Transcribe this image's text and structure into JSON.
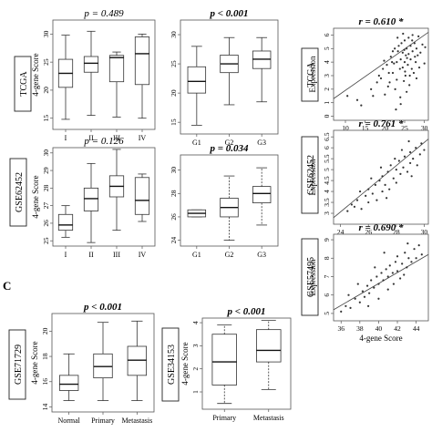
{
  "panel_c_label": "C",
  "chart_data": [
    {
      "id": "tcga-stage",
      "type": "boxplot",
      "group": "TCGA",
      "ylabel": "4-gene Score",
      "stat": "p = 0.489",
      "stat_bold": false,
      "categories": [
        "I",
        "II",
        "III",
        "IV"
      ],
      "ylim": [
        13,
        32.5
      ],
      "yticks": [
        15,
        20,
        25,
        30
      ],
      "boxes": [
        {
          "wl": 14.8,
          "q1": 20.5,
          "med": 23,
          "q3": 25.5,
          "wh": 29.8
        },
        {
          "wl": 15.5,
          "q1": 23.2,
          "med": 24.8,
          "q3": 26,
          "wh": 30.5
        },
        {
          "wl": 15.2,
          "q1": 21.5,
          "med": 25.8,
          "q3": 26.2,
          "wh": 26.8
        },
        {
          "wl": 15,
          "q1": 21,
          "med": 26.5,
          "q3": 29.5,
          "wh": 30
        }
      ]
    },
    {
      "id": "tcga-grade",
      "type": "boxplot",
      "group": "TCGA",
      "ylabel": "",
      "stat": "p < 0.001",
      "stat_bold": true,
      "categories": [
        "G1",
        "G2",
        "G3"
      ],
      "ylim": [
        13,
        32.5
      ],
      "yticks": [
        15,
        20,
        25,
        30
      ],
      "boxes": [
        {
          "wl": 14.5,
          "q1": 20,
          "med": 22,
          "q3": 24.5,
          "wh": 28
        },
        {
          "wl": 18,
          "q1": 23.5,
          "med": 25,
          "q3": 26.5,
          "wh": 29.5
        },
        {
          "wl": 18.5,
          "q1": 24.2,
          "med": 25.8,
          "q3": 27.2,
          "wh": 29.5
        }
      ]
    },
    {
      "id": "tcga-corr",
      "type": "scatter",
      "group": "TCGA",
      "ylabel": "Expression",
      "stat": "r = 0.610 *",
      "xlim": [
        7,
        31
      ],
      "ylim": [
        -0.3,
        6.5
      ],
      "xticks": [
        10,
        15,
        20,
        25,
        30
      ],
      "yticks": [
        0,
        1,
        2,
        3,
        4,
        5,
        6
      ],
      "fit": [
        [
          7,
          1.3
        ],
        [
          31,
          6.2
        ]
      ],
      "points": [
        [
          10.5,
          1.5
        ],
        [
          13,
          1.2
        ],
        [
          14,
          0.8
        ],
        [
          16.5,
          2
        ],
        [
          17,
          1.5
        ],
        [
          18,
          2.5
        ],
        [
          18.5,
          3
        ],
        [
          19,
          2.8
        ],
        [
          19.5,
          3.5
        ],
        [
          20,
          1.6
        ],
        [
          20.5,
          3.8
        ],
        [
          21,
          3.2
        ],
        [
          21.2,
          2.5
        ],
        [
          21.5,
          4.4
        ],
        [
          22,
          3.2
        ],
        [
          22,
          4.8
        ],
        [
          22.3,
          3.9
        ],
        [
          22.5,
          5
        ],
        [
          22.8,
          0.5
        ],
        [
          23,
          4
        ],
        [
          23,
          2.7
        ],
        [
          23.3,
          4.8
        ],
        [
          23.5,
          5.2
        ],
        [
          23.8,
          3.5
        ],
        [
          24,
          4.2
        ],
        [
          24,
          0.9
        ],
        [
          24.2,
          5.4
        ],
        [
          24.5,
          3.6
        ],
        [
          24.5,
          4.7
        ],
        [
          24.8,
          2.6
        ],
        [
          25,
          4
        ],
        [
          25,
          5.6
        ],
        [
          25.2,
          3
        ],
        [
          25.3,
          4.5
        ],
        [
          25.5,
          5
        ],
        [
          25.5,
          1.8
        ],
        [
          25.8,
          3.8
        ],
        [
          26,
          4.6
        ],
        [
          26,
          5.8
        ],
        [
          26.2,
          2.3
        ],
        [
          26.5,
          4.2
        ],
        [
          26.5,
          5.2
        ],
        [
          26.8,
          3.5
        ],
        [
          27,
          4.8
        ],
        [
          27,
          6
        ],
        [
          27.3,
          3.2
        ],
        [
          27.5,
          5.4
        ],
        [
          27.8,
          4
        ],
        [
          28,
          5
        ],
        [
          28,
          2.8
        ],
        [
          28.3,
          4.5
        ],
        [
          28.5,
          5.9
        ],
        [
          29,
          4.7
        ],
        [
          29.5,
          5.3
        ],
        [
          30,
          3.9
        ],
        [
          30.2,
          5.1
        ],
        [
          23.2,
          5.8
        ],
        [
          24.6,
          6.1
        ],
        [
          22.6,
          2
        ],
        [
          21.8,
          4
        ],
        [
          26.3,
          3
        ],
        [
          25.6,
          4.3
        ],
        [
          24.9,
          4.9
        ],
        [
          27.6,
          4.4
        ],
        [
          20.8,
          2.2
        ],
        [
          19.8,
          4.1
        ],
        [
          23.9,
          1.4
        ],
        [
          26.9,
          5.6
        ],
        [
          25.1,
          3.3
        ],
        [
          28.7,
          3.6
        ]
      ]
    },
    {
      "id": "gse62452-stage",
      "type": "boxplot",
      "group": "GSE62452",
      "ylabel": "4-gene Score",
      "stat": "p = 0.126",
      "stat_bold": false,
      "categories": [
        "I",
        "II",
        "III",
        "IV"
      ],
      "ylim": [
        24.7,
        30.3
      ],
      "yticks": [
        25,
        26,
        27,
        28,
        29,
        30
      ],
      "boxes": [
        {
          "wl": 25.2,
          "q1": 25.6,
          "med": 25.9,
          "q3": 26.5,
          "wh": 27
        },
        {
          "wl": 24.9,
          "q1": 26.7,
          "med": 27.4,
          "q3": 28,
          "wh": 29.4
        },
        {
          "wl": 25.6,
          "q1": 27.5,
          "med": 28.1,
          "q3": 28.7,
          "wh": 30.2
        },
        {
          "wl": 26.1,
          "q1": 26.5,
          "med": 27.3,
          "q3": 28.6,
          "wh": 28.8
        }
      ]
    },
    {
      "id": "gse62452-grade",
      "type": "boxplot",
      "group": "GSE62452",
      "ylabel": "",
      "stat": "p = 0.034",
      "stat_bold": true,
      "categories": [
        "G1",
        "G2",
        "G3"
      ],
      "ylim": [
        23.5,
        31.3
      ],
      "yticks": [
        24,
        26,
        28,
        30
      ],
      "boxes": [
        {
          "wl": 26,
          "q1": 26,
          "med": 26.3,
          "q3": 26.6,
          "wh": 26.6
        },
        {
          "wl": 24,
          "q1": 26,
          "med": 26.8,
          "q3": 27.6,
          "wh": 29.5
        },
        {
          "wl": 25.3,
          "q1": 27.2,
          "med": 28,
          "q3": 28.6,
          "wh": 30.2
        }
      ]
    },
    {
      "id": "gse62452-corr",
      "type": "scatter",
      "group": "GSE62452",
      "ylabel": "Expression",
      "stat": "r = 0.761 *",
      "xlim": [
        23.5,
        30.3
      ],
      "ylim": [
        2.5,
        6.8
      ],
      "xticks": [
        24,
        26,
        28,
        30
      ],
      "yticks": [
        3,
        3.5,
        4,
        4.5,
        5,
        5.5,
        6,
        6.5
      ],
      "fit": [
        [
          23.5,
          2.8
        ],
        [
          30.3,
          6.4
        ]
      ],
      "points": [
        [
          24.5,
          3.1
        ],
        [
          25,
          3.3
        ],
        [
          25.2,
          3.6
        ],
        [
          25.5,
          3.2
        ],
        [
          25.8,
          3.8
        ],
        [
          26,
          3.5
        ],
        [
          26,
          4.1
        ],
        [
          26.3,
          3.9
        ],
        [
          26.5,
          4.3
        ],
        [
          26.6,
          3.6
        ],
        [
          26.8,
          4.5
        ],
        [
          27,
          4.0
        ],
        [
          27,
          4.7
        ],
        [
          27.2,
          4.3
        ],
        [
          27.4,
          4.9
        ],
        [
          27.5,
          4.1
        ],
        [
          27.6,
          5.2
        ],
        [
          27.8,
          4.6
        ],
        [
          28,
          5.0
        ],
        [
          28,
          4.4
        ],
        [
          28.2,
          5.4
        ],
        [
          28.3,
          4.8
        ],
        [
          28.5,
          5.1
        ],
        [
          28.6,
          5.6
        ],
        [
          28.8,
          4.9
        ],
        [
          29,
          5.3
        ],
        [
          29,
          5.8
        ],
        [
          29.2,
          5.5
        ],
        [
          29.4,
          6.0
        ],
        [
          29.5,
          5.2
        ],
        [
          29.7,
          5.7
        ],
        [
          29.8,
          6.2
        ],
        [
          30,
          5.9
        ],
        [
          26.2,
          4.6
        ],
        [
          27.3,
          3.7
        ],
        [
          28.4,
          5.9
        ],
        [
          25.4,
          4.0
        ],
        [
          27.9,
          5.5
        ],
        [
          26.9,
          5.1
        ],
        [
          29.1,
          4.7
        ],
        [
          24.8,
          3.4
        ],
        [
          28.9,
          6.3
        ]
      ]
    },
    {
      "id": "gse57495-corr",
      "type": "scatter",
      "group": "GSE57495",
      "ylabel": "Expression",
      "xlabel": "4-gene Score",
      "stat": "r = 0.690 *",
      "xlim": [
        35.2,
        45.3
      ],
      "ylim": [
        4.6,
        9.3
      ],
      "xticks": [
        36,
        38,
        40,
        42,
        44
      ],
      "yticks": [
        5,
        6,
        7,
        8,
        9
      ],
      "fit": [
        [
          35.2,
          5.2
        ],
        [
          45.3,
          8.2
        ]
      ],
      "points": [
        [
          36,
          5.1
        ],
        [
          36.5,
          5.4
        ],
        [
          37,
          5.3
        ],
        [
          37.5,
          5.8
        ],
        [
          38,
          5.6
        ],
        [
          38.3,
          6.2
        ],
        [
          38.5,
          5.9
        ],
        [
          38.8,
          6.5
        ],
        [
          39,
          6.1
        ],
        [
          39.2,
          6.8
        ],
        [
          39.5,
          6.4
        ],
        [
          39.8,
          7.0
        ],
        [
          40,
          6.6
        ],
        [
          40,
          5.8
        ],
        [
          40.3,
          7.2
        ],
        [
          40.5,
          6.8
        ],
        [
          40.8,
          7.4
        ],
        [
          41,
          7.0
        ],
        [
          41,
          6.3
        ],
        [
          41.2,
          7.6
        ],
        [
          41.5,
          7.2
        ],
        [
          41.8,
          7.8
        ],
        [
          42,
          7.3
        ],
        [
          42,
          8.1
        ],
        [
          42.3,
          6.9
        ],
        [
          42.5,
          7.7
        ],
        [
          42.8,
          8.3
        ],
        [
          43,
          7.5
        ],
        [
          43.2,
          8.0
        ],
        [
          43.5,
          7.8
        ],
        [
          43.8,
          8.5
        ],
        [
          44,
          8.0
        ],
        [
          44.3,
          8.7
        ],
        [
          44.6,
          8.2
        ],
        [
          37.8,
          6.6
        ],
        [
          39.6,
          7.5
        ],
        [
          41.6,
          6.6
        ],
        [
          40.6,
          8.3
        ],
        [
          43.1,
          8.8
        ],
        [
          38.9,
          5.4
        ],
        [
          42.7,
          7.1
        ],
        [
          36.8,
          6.0
        ]
      ]
    },
    {
      "id": "gse71729-type",
      "type": "boxplot",
      "group": "GSE71729",
      "ylabel": "4-gene Score",
      "stat": "p < 0.001",
      "stat_bold": true,
      "categories": [
        "Normal",
        "Primary",
        "Metastasis"
      ],
      "ylim": [
        13.6,
        21.4
      ],
      "yticks": [
        14,
        16,
        18,
        20
      ],
      "boxes": [
        {
          "wl": 14.5,
          "q1": 15.3,
          "med": 15.8,
          "q3": 16.5,
          "wh": 18.2
        },
        {
          "wl": 14.5,
          "q1": 16.3,
          "med": 17.2,
          "q3": 18.2,
          "wh": 20.7
        },
        {
          "wl": 14.5,
          "q1": 16.5,
          "med": 17.7,
          "q3": 18.8,
          "wh": 20.8
        }
      ]
    },
    {
      "id": "gse34153-type",
      "type": "boxplot",
      "group": "GSE34153",
      "ylabel": "4-gene Score",
      "stat": "p < 0.001",
      "stat_bold": true,
      "categories": [
        "Primary",
        "Metastasis"
      ],
      "ylim": [
        0.25,
        4.2
      ],
      "yticks": [
        1,
        2,
        3,
        4
      ],
      "boxes": [
        {
          "wl": 0.5,
          "q1": 1.3,
          "med": 2.3,
          "q3": 3.5,
          "wh": 3.9
        },
        {
          "wl": 1.1,
          "q1": 2.3,
          "med": 2.8,
          "q3": 3.7,
          "wh": 4.1
        }
      ]
    }
  ]
}
